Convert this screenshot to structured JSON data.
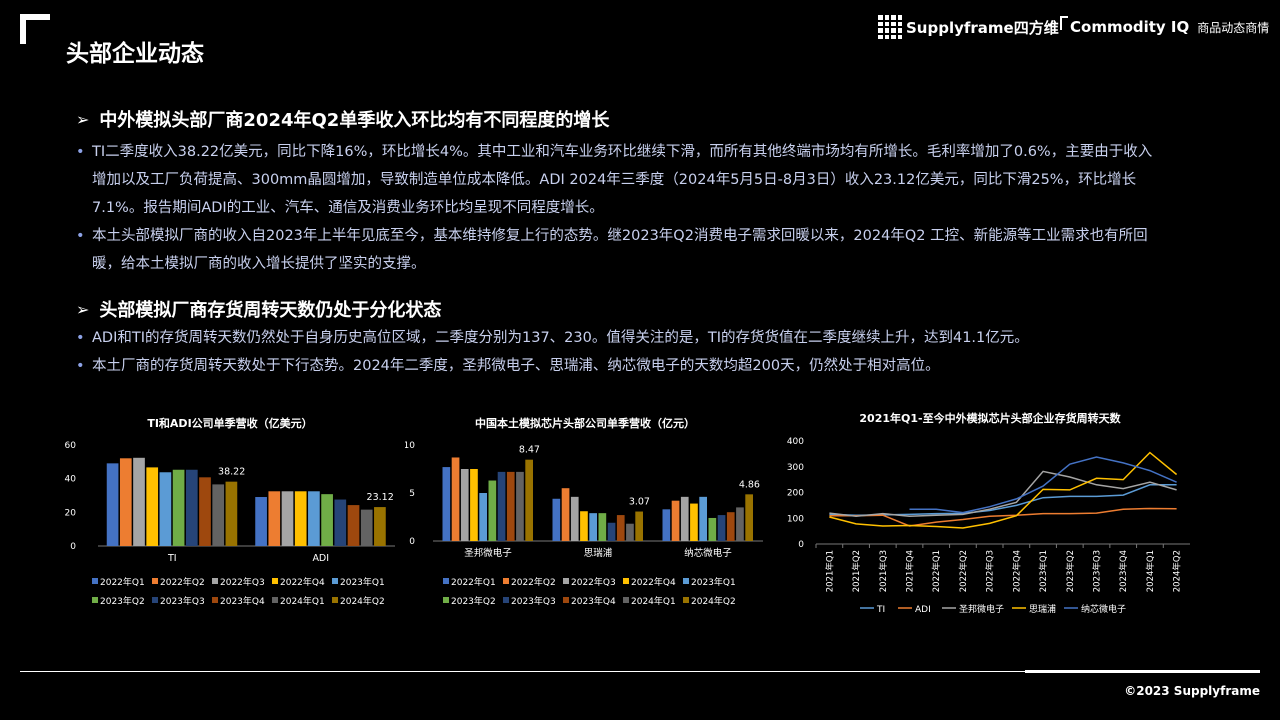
{
  "header": {
    "title": "头部企业动态",
    "brand_name": "Supplyframe四方维",
    "product_name": "Commodity IQ",
    "product_sub": "商品动态商情"
  },
  "section1": {
    "heading": "中外模拟头部厂商2024年Q2单季收入环比均有不同程度的增长",
    "bullets": [
      "TI二季度收入38.22亿美元，同比下降16%，环比增长4%。其中工业和汽车业务环比继续下滑，而所有其他终端市场均有所增长。毛利率增加了0.6%，主要由于收入增加以及工厂负荷提高、300mm晶圆增加，导致制造单位成本降低。ADI 2024年三季度（2024年5月5日-8月3日）收入23.12亿美元，同比下滑25%，环比增长7.1%。报告期间ADI的工业、汽车、通信及消费业务环比均呈现不同程度增长。",
      "本土头部模拟厂商的收入自2023年上半年见底至今，基本维持修复上行的态势。继2023年Q2消费电子需求回暖以来，2024年Q2 工控、新能源等工业需求也有所回暖，给本土模拟厂商的收入增长提供了坚实的支撑。"
    ]
  },
  "section2": {
    "heading": "头部模拟厂商存货周转天数仍处于分化状态",
    "bullets": [
      "ADI和TI的存货周转天数仍然处于自身历史高位区域，二季度分别为137、230。值得关注的是，TI的存货货值在二季度继续上升，达到41.1亿元。",
      "本土厂商的存货周转天数处于下行态势。2024年二季度，圣邦微电子、思瑞浦、纳芯微电子的天数均超200天，仍然处于相对高位。"
    ]
  },
  "footer": {
    "copyright": "©2023 Supplyframe"
  },
  "chart_data": [
    {
      "type": "bar",
      "title": "TI和ADI公司单季营收（亿美元）",
      "categories": [
        "TI",
        "ADI"
      ],
      "series_names": [
        "2022年Q1",
        "2022年Q2",
        "2022年Q3",
        "2022年Q4",
        "2023年Q1",
        "2023年Q2",
        "2023年Q3",
        "2023年Q4",
        "2024年Q1",
        "2024年Q2"
      ],
      "colors": [
        "#4472c4",
        "#ed7d31",
        "#a5a5a5",
        "#ffc000",
        "#5b9bd5",
        "#70ad47",
        "#264478",
        "#9e480e",
        "#636363",
        "#997300"
      ],
      "values": [
        [
          49.1,
          52.1,
          52.4,
          46.7,
          43.8,
          45.3,
          45.3,
          40.8,
          36.6,
          38.22
        ],
        [
          29.1,
          32.5,
          32.5,
          32.5,
          32.5,
          30.8,
          27.6,
          24.3,
          21.6,
          23.12
        ]
      ],
      "data_labels": [
        {
          "category": 0,
          "series": 9,
          "text": "38.22"
        },
        {
          "category": 1,
          "series": 9,
          "text": "23.12"
        }
      ],
      "yticks": [
        0,
        20,
        40,
        60
      ],
      "ylim": [
        0,
        60
      ],
      "legend": "bottom"
    },
    {
      "type": "bar",
      "title": "中国本土模拟芯片头部公司单季营收（亿元）",
      "categories": [
        "圣邦微电子",
        "思瑞浦",
        "纳芯微电子"
      ],
      "series_names": [
        "2022年Q1",
        "2022年Q2",
        "2022年Q3",
        "2022年Q4",
        "2023年Q1",
        "2023年Q2",
        "2023年Q3",
        "2023年Q4",
        "2024年Q1",
        "2024年Q2"
      ],
      "colors": [
        "#4472c4",
        "#ed7d31",
        "#a5a5a5",
        "#ffc000",
        "#5b9bd5",
        "#70ad47",
        "#264478",
        "#9e480e",
        "#636363",
        "#997300"
      ],
      "values": [
        [
          7.7,
          8.7,
          7.5,
          7.5,
          5.0,
          6.3,
          7.2,
          7.2,
          7.2,
          8.47
        ],
        [
          4.4,
          5.5,
          4.6,
          3.1,
          2.9,
          2.9,
          1.9,
          2.7,
          1.8,
          3.07
        ],
        [
          3.3,
          4.2,
          4.6,
          3.9,
          4.6,
          2.4,
          2.7,
          3.0,
          3.5,
          4.86
        ]
      ],
      "data_labels": [
        {
          "category": 0,
          "series": 9,
          "text": "8.47"
        },
        {
          "category": 1,
          "series": 9,
          "text": "3.07"
        },
        {
          "category": 2,
          "series": 9,
          "text": "4.86"
        }
      ],
      "yticks": [
        0,
        5,
        10
      ],
      "ylim": [
        0,
        10
      ],
      "legend": "bottom"
    },
    {
      "type": "line",
      "title": "2021年Q1-至今中外模拟芯片头部企业存货周转天数",
      "x": [
        "2021年Q1",
        "2021年Q2",
        "2021年Q3",
        "2021年Q4",
        "2022年Q1",
        "2022年Q2",
        "2022年Q3",
        "2022年Q4",
        "2023年Q1",
        "2023年Q2",
        "2023年Q3",
        "2023年Q4",
        "2024年Q1",
        "2024年Q2"
      ],
      "yticks": [
        0,
        100,
        200,
        300,
        400
      ],
      "ylim": [
        0,
        400
      ],
      "series": [
        {
          "name": "TI",
          "color": "#5b9bd5",
          "values": [
            115,
            112,
            113,
            115,
            118,
            119,
            130,
            150,
            180,
            185,
            185,
            190,
            230,
            230
          ]
        },
        {
          "name": "ADI",
          "color": "#ed7d31",
          "values": [
            110,
            110,
            112,
            70,
            85,
            95,
            108,
            112,
            118,
            118,
            120,
            135,
            138,
            137
          ]
        },
        {
          "name": "圣邦微电子",
          "color": "#a5a5a5",
          "values": [
            120,
            108,
            118,
            108,
            112,
            115,
            135,
            162,
            282,
            260,
            230,
            215,
            240,
            210
          ]
        },
        {
          "name": "思瑞浦",
          "color": "#ffc000",
          "values": [
            105,
            78,
            70,
            72,
            68,
            62,
            80,
            110,
            212,
            210,
            255,
            250,
            355,
            270
          ]
        },
        {
          "name": "纳芯微电子",
          "color": "#4472c4",
          "values": [
            null,
            null,
            null,
            135,
            135,
            122,
            145,
            175,
            225,
            310,
            338,
            315,
            285,
            240
          ]
        }
      ],
      "legend": "bottom"
    }
  ]
}
